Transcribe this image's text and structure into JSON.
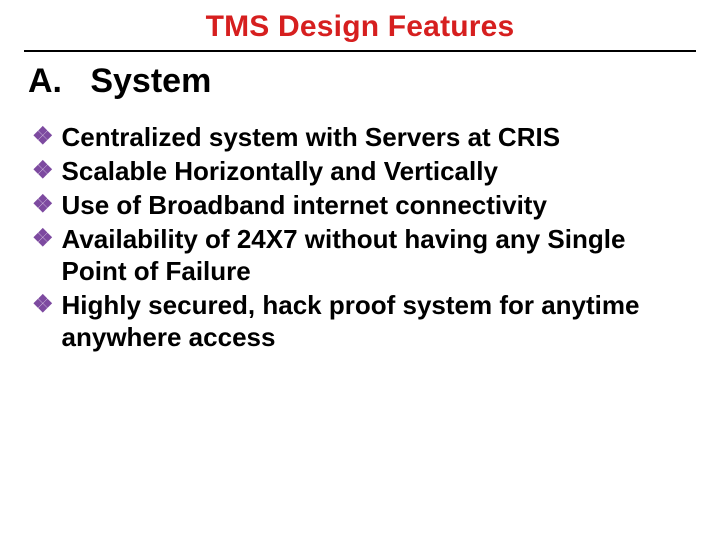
{
  "colors": {
    "title": "#d61f1f",
    "subtitle": "#000000",
    "body_text": "#000000",
    "bullet_icon": "#7d4aa0",
    "underline": "#000000",
    "background": "#ffffff"
  },
  "typography": {
    "title_fontsize": 30,
    "subtitle_fontsize": 34,
    "body_fontsize": 26,
    "font_family": "Arial",
    "weight": "bold"
  },
  "title": "TMS Design Features",
  "section": {
    "label": "A.",
    "heading": "System"
  },
  "bullet_glyph": "❖",
  "bullets": [
    "Centralized system with Servers at CRIS",
    "Scalable Horizontally and Vertically",
    "Use of Broadband internet connectivity",
    "Availability of 24X7 without having any Single Point of Failure",
    "Highly secured, hack proof system for anytime anywhere access"
  ]
}
